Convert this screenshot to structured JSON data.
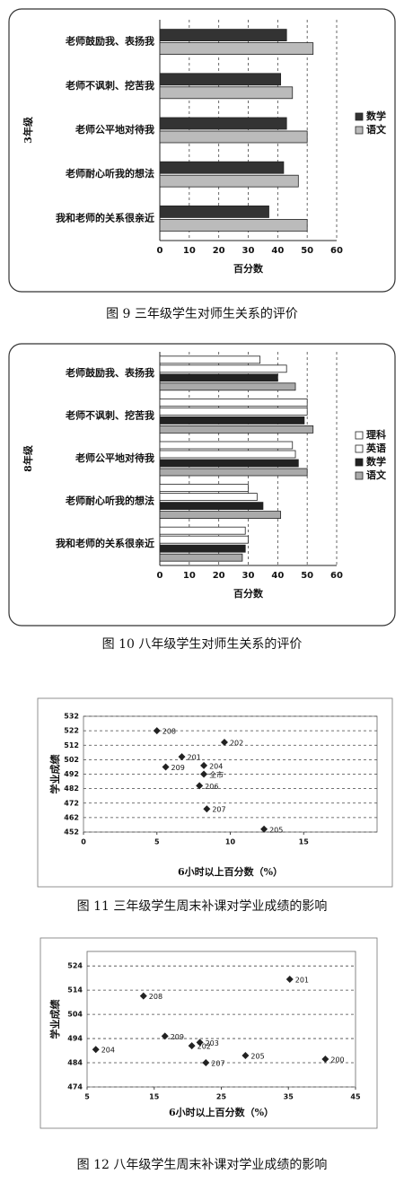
{
  "chart_data": [
    {
      "type": "bar",
      "orientation": "horizontal",
      "ylabel": "3年级",
      "xlabel": "百分数",
      "caption": "图 9  三年级学生对师生关系的评价",
      "categories": [
        "老师鼓励我、表扬我",
        "老师不讽刺、挖苦我",
        "老师公平地对待我",
        "老师耐心听我的想法",
        "我和老师的关系很亲近"
      ],
      "series": [
        {
          "name": "数学",
          "color": "#333333",
          "values": [
            43,
            41,
            43,
            42,
            37
          ]
        },
        {
          "name": "语文",
          "color": "#bbbbbb",
          "values": [
            52,
            45,
            50,
            47,
            50
          ]
        }
      ],
      "xlim": [
        0,
        60
      ],
      "xticks": [
        0,
        10,
        20,
        30,
        40,
        50,
        60
      ],
      "grid": true,
      "legend": "right"
    },
    {
      "type": "bar",
      "orientation": "horizontal",
      "ylabel": "8年级",
      "xlabel": "百分数",
      "caption": "图 10  八年级学生对师生关系的评价",
      "categories": [
        "老师鼓励我、表扬我",
        "老师不讽刺、挖苦我",
        "老师公平地对待我",
        "老师耐心听我的想法",
        "我和老师的关系很亲近"
      ],
      "series": [
        {
          "name": "理科",
          "color": "#ffffff",
          "values": [
            34,
            50,
            45,
            30,
            29
          ]
        },
        {
          "name": "英语",
          "color": "#ffffff",
          "values": [
            43,
            50,
            46,
            33,
            30
          ]
        },
        {
          "name": "数学",
          "color": "#222222",
          "values": [
            40,
            49,
            47,
            35,
            29
          ]
        },
        {
          "name": "语文",
          "color": "#aaaaaa",
          "values": [
            46,
            52,
            50,
            41,
            28
          ]
        }
      ],
      "xlim": [
        0,
        60
      ],
      "xticks": [
        0,
        10,
        20,
        30,
        40,
        50,
        60
      ],
      "grid": true,
      "legend": "right"
    },
    {
      "type": "scatter",
      "ylabel": "学业成绩",
      "xlabel": "6小时以上百分数（%）",
      "caption": "图 11  三年级学生周末补课对学业成绩的影响",
      "x": [
        5.0,
        9.6,
        6.7,
        5.6,
        8.2,
        8.2,
        7.9,
        8.4,
        12.3
      ],
      "values": [
        522,
        514,
        504,
        497,
        498,
        492,
        484,
        468,
        454
      ],
      "point_labels": [
        "208",
        "202",
        "201",
        "209",
        "204",
        "全市",
        "206",
        "207",
        "205"
      ],
      "color": "#222222",
      "xlim": [
        0,
        20
      ],
      "xticks": [
        0,
        5,
        10,
        15
      ],
      "ylim": [
        452,
        532
      ],
      "yticks": [
        452,
        462,
        472,
        482,
        492,
        502,
        512,
        522,
        532
      ],
      "grid": true
    },
    {
      "type": "scatter",
      "ylabel": "学业成绩",
      "xlabel": "6小时以上百分数（%）",
      "caption": "图 12  八年级学生周末补课对学业成绩的影响",
      "x": [
        35.2,
        13.4,
        16.6,
        6.3,
        21.8,
        20.6,
        22.7,
        28.6,
        40.5
      ],
      "values": [
        518.5,
        511.6,
        495,
        489.5,
        492.4,
        491,
        484,
        487,
        485.5
      ],
      "point_labels": [
        "201",
        "208",
        "209",
        "204",
        "203",
        "202",
        "207",
        "205",
        "200"
      ],
      "color": "#222222",
      "xlim": [
        5,
        45
      ],
      "xticks": [
        5,
        15,
        25,
        35,
        45
      ],
      "ylim": [
        474,
        530
      ],
      "yticks": [
        474,
        484,
        494,
        504,
        514,
        524
      ],
      "grid": true
    }
  ]
}
